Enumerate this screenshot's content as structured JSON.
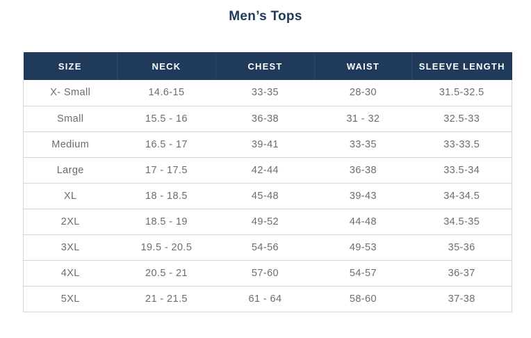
{
  "page": {
    "title": "Men’s Tops"
  },
  "table": {
    "headers": [
      "SIZE",
      "NECK",
      "CHEST",
      "WAIST",
      "SLEEVE LENGTH"
    ],
    "rows": [
      [
        "X- Small",
        "14.6-15",
        "33-35",
        "28-30",
        "31.5-32.5"
      ],
      [
        "Small",
        "15.5 - 16",
        "36-38",
        "31 - 32",
        "32.5-33"
      ],
      [
        "Medium",
        "16.5 - 17",
        "39-41",
        "33-35",
        "33-33.5"
      ],
      [
        "Large",
        "17 - 17.5",
        "42-44",
        "36-38",
        "33.5-34"
      ],
      [
        "XL",
        "18 - 18.5",
        "45-48",
        "39-43",
        "34-34.5"
      ],
      [
        "2XL",
        "18.5 - 19",
        "49-52",
        "44-48",
        "34.5-35"
      ],
      [
        "3XL",
        "19.5 - 20.5",
        "54-56",
        "49-53",
        "35-36"
      ],
      [
        "4XL",
        "20.5 - 21",
        "57-60",
        "54-57",
        "36-37"
      ],
      [
        "5XL",
        "21 - 21.5",
        "61 - 64",
        "58-60",
        "37-38"
      ]
    ]
  },
  "colors": {
    "header_background": "#203a5c",
    "header_text": "#ffffff",
    "title_text": "#203a5c",
    "body_text": "#696d72",
    "border": "#d4d6d8",
    "background": "#ffffff"
  }
}
